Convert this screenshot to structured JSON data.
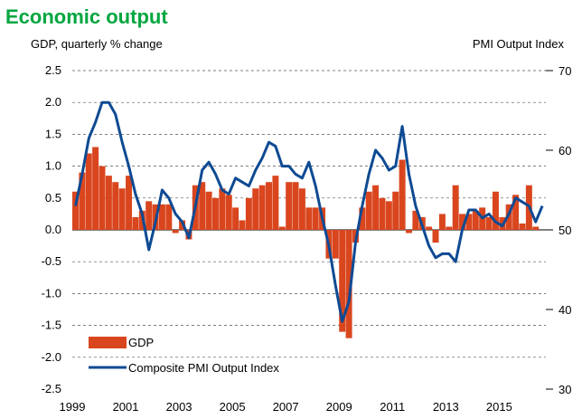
{
  "chart_data": {
    "type": "bar+line",
    "title": "Economic output",
    "title_color": "#00A63F",
    "ylabel_left": "GDP, quarterly % change",
    "ylabel_right": "PMI Output  Index",
    "ylim_left": [
      -2.5,
      2.5
    ],
    "ylim_right": [
      30,
      70
    ],
    "yticks_left": [
      "2.5",
      "2.0",
      "1.5",
      "1.0",
      "0.5",
      "0.0",
      "-0.5",
      "-1.0",
      "-1.5",
      "-2.0",
      "-2.5"
    ],
    "yticks_right": [
      "70",
      "60",
      "50",
      "40",
      "30"
    ],
    "xlim": [
      1999.0,
      2016.75
    ],
    "xticks": [
      "1999",
      "2001",
      "2003",
      "2005",
      "2007",
      "2009",
      "2011",
      "2013",
      "2015"
    ],
    "grid": "horizontal dashed",
    "legend_position": "bottom-left",
    "series": [
      {
        "name": "GDP",
        "kind": "bar",
        "color": "#D9461E",
        "x": [
          1999.0,
          1999.25,
          1999.5,
          1999.75,
          2000.0,
          2000.25,
          2000.5,
          2000.75,
          2001.0,
          2001.25,
          2001.5,
          2001.75,
          2002.0,
          2002.25,
          2002.5,
          2002.75,
          2003.0,
          2003.25,
          2003.5,
          2003.75,
          2004.0,
          2004.25,
          2004.5,
          2004.75,
          2005.0,
          2005.25,
          2005.5,
          2005.75,
          2006.0,
          2006.25,
          2006.5,
          2006.75,
          2007.0,
          2007.25,
          2007.5,
          2007.75,
          2008.0,
          2008.25,
          2008.5,
          2008.75,
          2009.0,
          2009.25,
          2009.5,
          2009.75,
          2010.0,
          2010.25,
          2010.5,
          2010.75,
          2011.0,
          2011.25,
          2011.5,
          2011.75,
          2012.0,
          2012.25,
          2012.5,
          2012.75,
          2013.0,
          2013.25,
          2013.5,
          2013.75,
          2014.0,
          2014.25,
          2014.5,
          2014.75,
          2015.0,
          2015.25,
          2015.5,
          2015.75,
          2016.0,
          2016.25
        ],
        "values": [
          0.6,
          0.9,
          1.2,
          1.3,
          1.0,
          0.85,
          0.75,
          0.65,
          0.85,
          0.2,
          0.3,
          0.45,
          0.4,
          0.4,
          0.4,
          -0.05,
          0.15,
          -0.15,
          0.7,
          0.75,
          0.6,
          0.5,
          0.65,
          0.55,
          0.35,
          0.15,
          0.5,
          0.65,
          0.7,
          0.75,
          0.85,
          0.05,
          0.75,
          0.75,
          0.65,
          0.35,
          0.35,
          0.35,
          -0.45,
          -0.45,
          -1.6,
          -1.7,
          -0.2,
          0.35,
          0.6,
          0.7,
          0.5,
          0.45,
          0.6,
          1.1,
          -0.05,
          0.3,
          0.2,
          0.05,
          -0.2,
          0.25,
          0.05,
          0.7,
          0.25,
          0.25,
          0.3,
          0.35,
          0.2,
          0.6,
          0.2,
          0.4,
          0.55,
          0.1,
          0.7,
          0.05
        ]
      },
      {
        "name": "Composite PMI Output Index",
        "kind": "line",
        "axis": "right",
        "color": "#0E4A93",
        "x": [
          1999.0,
          1999.25,
          1999.5,
          1999.75,
          2000.0,
          2000.25,
          2000.5,
          2000.75,
          2001.0,
          2001.25,
          2001.5,
          2001.75,
          2002.0,
          2002.25,
          2002.5,
          2002.75,
          2003.0,
          2003.25,
          2003.5,
          2003.75,
          2004.0,
          2004.25,
          2004.5,
          2004.75,
          2005.0,
          2005.25,
          2005.5,
          2005.75,
          2006.0,
          2006.25,
          2006.5,
          2006.75,
          2007.0,
          2007.25,
          2007.5,
          2007.75,
          2008.0,
          2008.25,
          2008.5,
          2008.75,
          2009.0,
          2009.25,
          2009.5,
          2009.75,
          2010.0,
          2010.25,
          2010.5,
          2010.75,
          2011.0,
          2011.25,
          2011.5,
          2011.75,
          2012.0,
          2012.25,
          2012.5,
          2012.75,
          2013.0,
          2013.25,
          2013.5,
          2013.75,
          2014.0,
          2014.25,
          2014.5,
          2014.75,
          2015.0,
          2015.25,
          2015.5,
          2015.75,
          2016.0,
          2016.25,
          2016.5
        ],
        "values": [
          53,
          57,
          61.5,
          63.5,
          66,
          66,
          64.5,
          61,
          58,
          54.5,
          52,
          47.5,
          51,
          55,
          54,
          52,
          51,
          49,
          53,
          57.5,
          58.5,
          57,
          55,
          54.5,
          56.5,
          56,
          55.5,
          57.5,
          59,
          61,
          60.5,
          58,
          58,
          57,
          56.5,
          58.5,
          55.5,
          51.5,
          48,
          43,
          38.5,
          41,
          48.5,
          53,
          57,
          60,
          59,
          57.5,
          58,
          63,
          57,
          53,
          50.5,
          48,
          46.5,
          47,
          47,
          46,
          50,
          52.5,
          52.5,
          51.5,
          52,
          51,
          50.5,
          52,
          54,
          53.5,
          53,
          51,
          53
        ]
      }
    ]
  }
}
